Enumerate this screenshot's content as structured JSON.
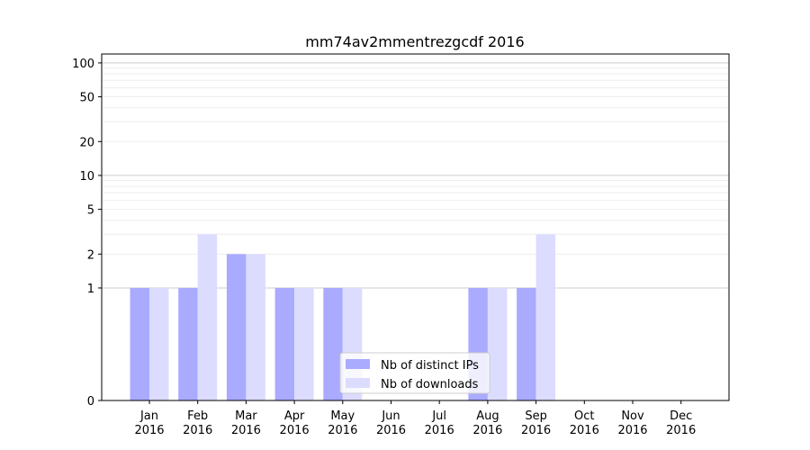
{
  "chart_data": {
    "type": "bar",
    "title": "mm74av2mmentrezgcdf 2016",
    "xlabel": "",
    "ylabel": "",
    "categories": [
      "Jan\n2016",
      "Feb\n2016",
      "Mar\n2016",
      "Apr\n2016",
      "May\n2016",
      "Jun\n2016",
      "Jul\n2016",
      "Aug\n2016",
      "Sep\n2016",
      "Oct\n2016",
      "Nov\n2016",
      "Dec\n2016"
    ],
    "y_scale": "symlog",
    "yticks": [
      0,
      1,
      2,
      5,
      10,
      20,
      50,
      100
    ],
    "ylim": [
      0,
      120
    ],
    "grid": true,
    "legend_position": "bottom-center",
    "series": [
      {
        "name": "Nb of distinct IPs",
        "color": "#aaaaff",
        "values": [
          1,
          1,
          2,
          1,
          1,
          0,
          0,
          1,
          1,
          0,
          0,
          0
        ]
      },
      {
        "name": "Nb of downloads",
        "color": "#dcdcff",
        "values": [
          1,
          3,
          2,
          1,
          1,
          0,
          0,
          1,
          3,
          0,
          0,
          0
        ]
      }
    ]
  }
}
